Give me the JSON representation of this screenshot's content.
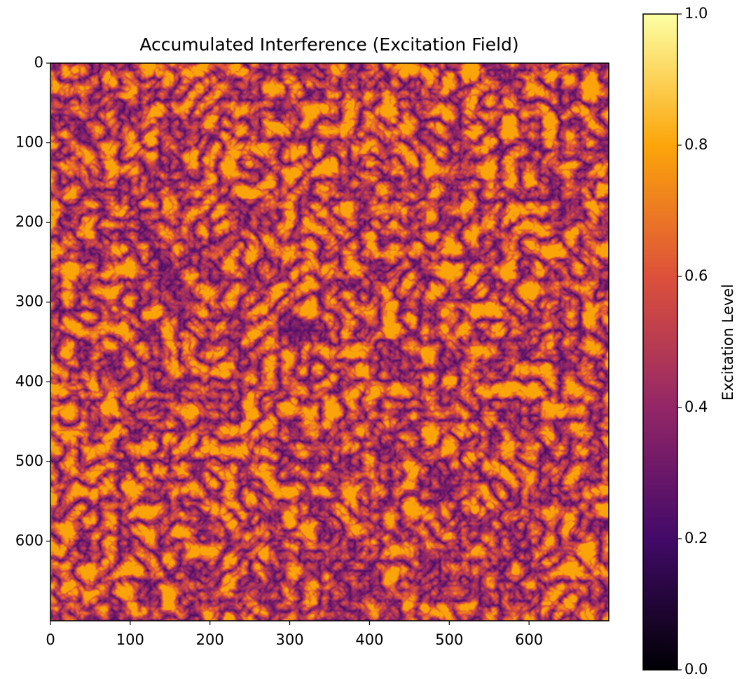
{
  "chart_data": {
    "type": "heatmap",
    "title": "Accumulated Interference (Excitation Field)",
    "xlim": [
      0,
      700
    ],
    "xticks": [
      0,
      100,
      200,
      300,
      400,
      500,
      600
    ],
    "ylim": [
      0,
      700
    ],
    "yticks": [
      0,
      100,
      200,
      300,
      400,
      500,
      600
    ],
    "y_inverted": true,
    "colormap": [
      "#000004",
      "#420a68",
      "#932667",
      "#dd513a",
      "#fca50a",
      "#fcffa4"
    ],
    "colorbar": {
      "label": "Excitation Level",
      "clim": [
        0,
        1
      ],
      "ticks": [
        {
          "value": 0,
          "label": "0.0"
        },
        {
          "value": 0.2,
          "label": "0.2"
        },
        {
          "value": 0.4,
          "label": "0.4"
        },
        {
          "value": 0.6,
          "label": "0.6"
        },
        {
          "value": 0.8,
          "label": "0.8"
        },
        {
          "value": 1,
          "label": "1.0"
        }
      ]
    }
  }
}
